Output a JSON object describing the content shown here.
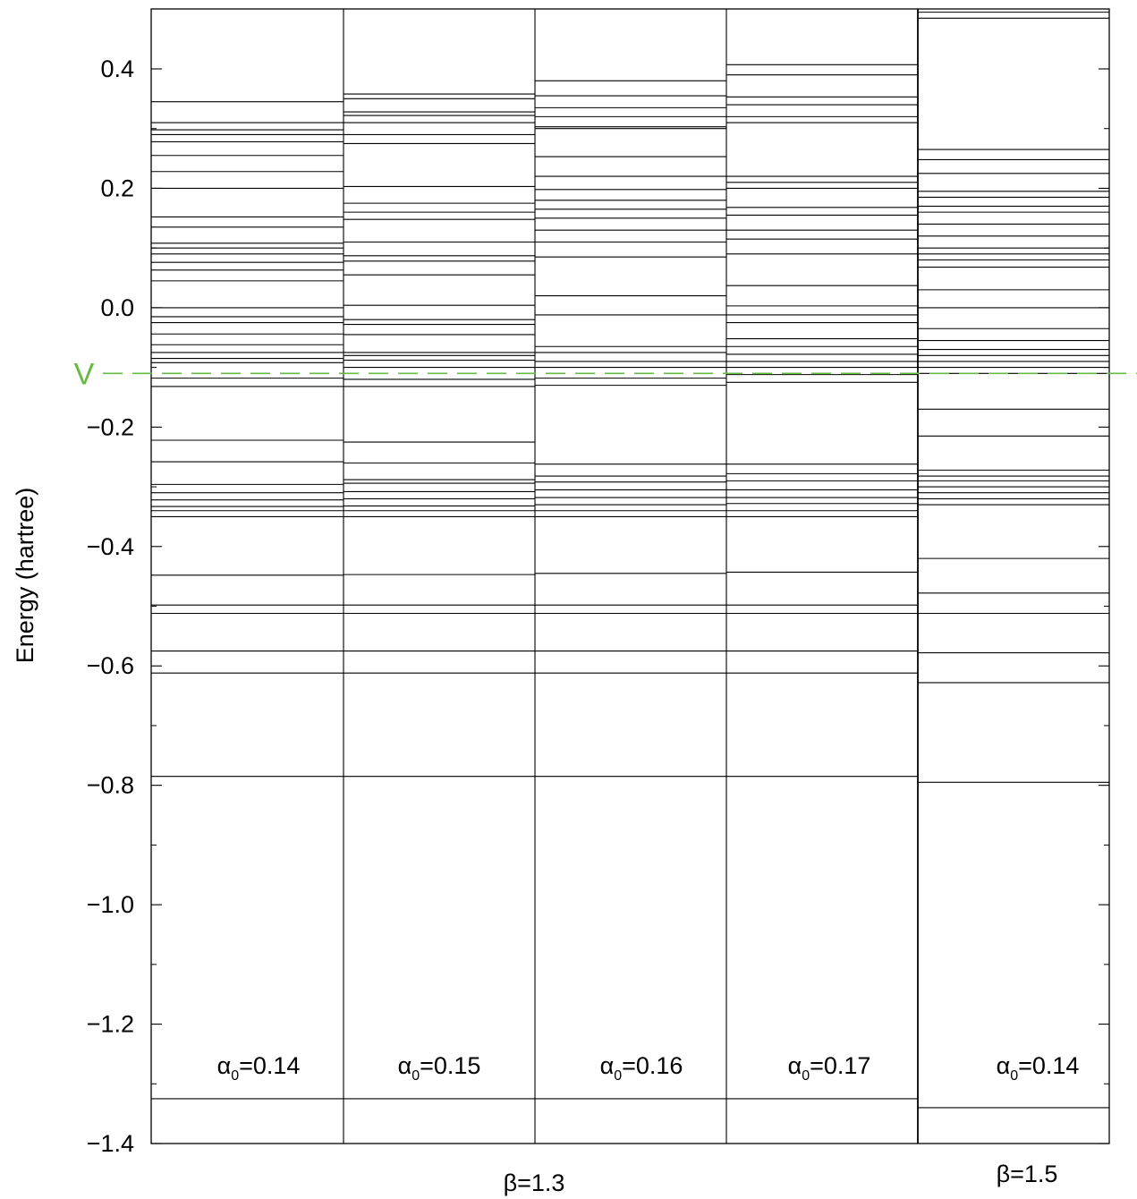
{
  "chart_data": {
    "type": "energy-level-diagram",
    "ylabel": "Energy (hartree)",
    "ylim": [
      -1.4,
      0.5
    ],
    "y_ticks": [
      {
        "value": 0.4,
        "label": "0.4"
      },
      {
        "value": 0.2,
        "label": "0.2"
      },
      {
        "value": 0.0,
        "label": "0.0"
      },
      {
        "value": -0.2,
        "label": "−0.2"
      },
      {
        "value": -0.4,
        "label": "−0.4"
      },
      {
        "value": -0.6,
        "label": "−0.6"
      },
      {
        "value": -0.8,
        "label": "−0.8"
      },
      {
        "value": -1.0,
        "label": "−1.0"
      },
      {
        "value": -1.2,
        "label": "−1.2"
      },
      {
        "value": -1.4,
        "label": "−1.4"
      }
    ],
    "reference_line": {
      "label": "V",
      "value": -0.11,
      "color": "#66bb44",
      "style": "dashed"
    },
    "columns": [
      {
        "label": "α",
        "label_sub": "0",
        "label_value": "=0.14",
        "levels": [
          -1.325,
          -0.785,
          -0.612,
          -0.575,
          -0.512,
          -0.498,
          -0.448,
          -0.35,
          -0.34,
          -0.333,
          -0.322,
          -0.31,
          -0.296,
          -0.258,
          -0.222,
          -0.132,
          -0.118,
          -0.092,
          -0.085,
          -0.075,
          -0.062,
          -0.044,
          -0.025,
          -0.015,
          0.0,
          0.045,
          0.063,
          0.076,
          0.09,
          0.1,
          0.108,
          0.135,
          0.152,
          0.2,
          0.228,
          0.255,
          0.278,
          0.29,
          0.298,
          0.31,
          0.345
        ]
      },
      {
        "label": "α",
        "label_sub": "0",
        "label_value": "=0.15",
        "levels": [
          -1.325,
          -0.785,
          -0.612,
          -0.575,
          -0.512,
          -0.498,
          -0.447,
          -0.35,
          -0.34,
          -0.332,
          -0.32,
          -0.308,
          -0.294,
          -0.288,
          -0.26,
          -0.225,
          -0.132,
          -0.12,
          -0.1,
          -0.088,
          -0.08,
          -0.075,
          -0.045,
          -0.028,
          -0.02,
          0.004,
          0.055,
          0.078,
          0.087,
          0.11,
          0.148,
          0.16,
          0.175,
          0.203,
          0.275,
          0.29,
          0.31,
          0.322,
          0.328,
          0.35,
          0.358
        ]
      },
      {
        "label": "α",
        "label_sub": "0",
        "label_value": "=0.16",
        "levels": [
          -1.325,
          -0.785,
          -0.612,
          -0.575,
          -0.512,
          -0.498,
          -0.445,
          -0.35,
          -0.34,
          -0.33,
          -0.318,
          -0.305,
          -0.292,
          -0.282,
          -0.262,
          -0.13,
          -0.118,
          -0.1,
          -0.09,
          -0.075,
          -0.065,
          -0.012,
          0.02,
          0.085,
          0.11,
          0.13,
          0.15,
          0.165,
          0.18,
          0.198,
          0.22,
          0.253,
          0.3,
          0.303,
          0.32,
          0.335,
          0.355,
          0.38
        ]
      },
      {
        "label": "α",
        "label_sub": "0",
        "label_value": "=0.17",
        "levels": [
          -1.325,
          -0.785,
          -0.612,
          -0.575,
          -0.512,
          -0.498,
          -0.443,
          -0.35,
          -0.34,
          -0.328,
          -0.318,
          -0.305,
          -0.29,
          -0.278,
          -0.262,
          -0.125,
          -0.112,
          -0.1,
          -0.09,
          -0.078,
          -0.065,
          -0.052,
          -0.025,
          -0.012,
          0.003,
          0.037,
          0.09,
          0.115,
          0.13,
          0.155,
          0.168,
          0.2,
          0.21,
          0.22,
          0.31,
          0.32,
          0.34,
          0.353,
          0.39,
          0.407
        ]
      },
      {
        "label": "α",
        "label_sub": "0",
        "label_value": "=0.14",
        "levels": [
          -1.34,
          -0.795,
          -0.628,
          -0.578,
          -0.512,
          -0.478,
          -0.42,
          -0.33,
          -0.32,
          -0.31,
          -0.3,
          -0.29,
          -0.282,
          -0.272,
          -0.215,
          -0.17,
          -0.11,
          -0.1,
          -0.09,
          -0.08,
          -0.07,
          -0.055,
          -0.035,
          0.0,
          0.03,
          0.068,
          0.08,
          0.09,
          0.1,
          0.12,
          0.14,
          0.16,
          0.17,
          0.185,
          0.195,
          0.225,
          0.248,
          0.265,
          0.485,
          0.495
        ]
      }
    ],
    "group_labels": [
      {
        "label": "β=1.3",
        "columns": [
          0,
          1,
          2,
          3
        ]
      },
      {
        "label": "β=1.5",
        "columns": [
          4
        ]
      }
    ]
  }
}
